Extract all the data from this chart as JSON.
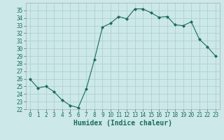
{
  "x": [
    0,
    1,
    2,
    3,
    4,
    5,
    6,
    7,
    8,
    9,
    10,
    11,
    12,
    13,
    14,
    15,
    16,
    17,
    18,
    19,
    20,
    21,
    22,
    23
  ],
  "y": [
    26.0,
    24.8,
    25.0,
    24.3,
    23.2,
    22.5,
    22.2,
    24.7,
    28.5,
    32.8,
    33.3,
    34.2,
    33.9,
    35.2,
    35.2,
    34.7,
    34.1,
    34.2,
    33.1,
    33.0,
    33.5,
    31.2,
    30.2,
    29.0
  ],
  "xlabel": "Humidex (Indice chaleur)",
  "ylim": [
    22,
    36
  ],
  "yticks": [
    22,
    23,
    24,
    25,
    26,
    27,
    28,
    29,
    30,
    31,
    32,
    33,
    34,
    35
  ],
  "xlim": [
    -0.5,
    23.5
  ],
  "xticks": [
    0,
    1,
    2,
    3,
    4,
    5,
    6,
    7,
    8,
    9,
    10,
    11,
    12,
    13,
    14,
    15,
    16,
    17,
    18,
    19,
    20,
    21,
    22,
    23
  ],
  "line_color": "#1a6b5a",
  "marker": "D",
  "marker_size": 2.0,
  "bg_color": "#cce8e8",
  "grid_color": "#aacccc",
  "tick_fontsize": 5.5,
  "xlabel_fontsize": 7.0
}
